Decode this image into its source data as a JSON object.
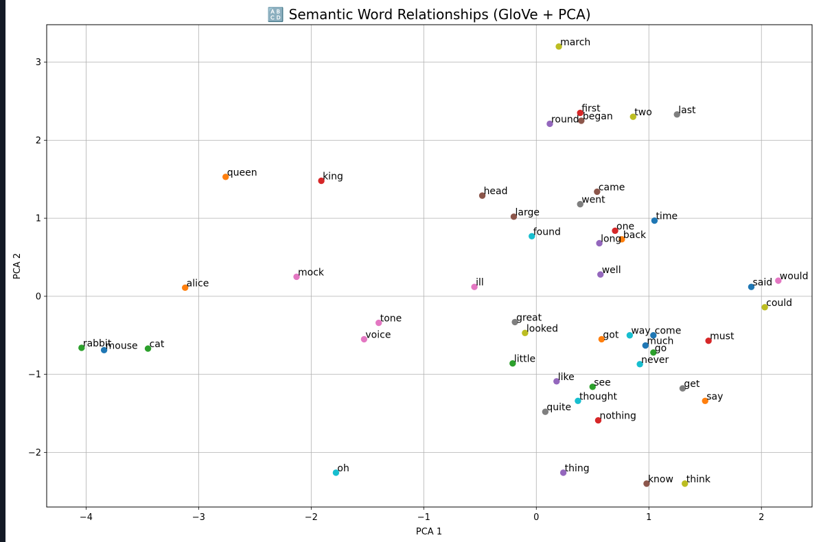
{
  "chart_data": {
    "type": "scatter",
    "title": "🔠 Semantic Word Relationships (GloVe + PCA)",
    "xlabel": "PCA 1",
    "ylabel": "PCA 2",
    "xlim": [
      -4.35,
      2.45
    ],
    "ylim": [
      -2.7,
      3.48
    ],
    "xticks": [
      -4,
      -3,
      -2,
      -1,
      0,
      1,
      2
    ],
    "yticks": [
      -2,
      -1,
      0,
      1,
      2,
      3
    ],
    "grid": true,
    "points": [
      {
        "word": "march",
        "x": 0.2,
        "y": 3.2,
        "color": "#bcbd22"
      },
      {
        "word": "first",
        "x": 0.39,
        "y": 2.35,
        "color": "#d62728"
      },
      {
        "word": "began",
        "x": 0.4,
        "y": 2.25,
        "color": "#8c564b"
      },
      {
        "word": "round",
        "x": 0.12,
        "y": 2.21,
        "color": "#9467bd"
      },
      {
        "word": "two",
        "x": 0.86,
        "y": 2.3,
        "color": "#bcbd22"
      },
      {
        "word": "last",
        "x": 1.25,
        "y": 2.33,
        "color": "#7f7f7f"
      },
      {
        "word": "queen",
        "x": -2.76,
        "y": 1.53,
        "color": "#ff7f0e"
      },
      {
        "word": "king",
        "x": -1.91,
        "y": 1.48,
        "color": "#d62728"
      },
      {
        "word": "head",
        "x": -0.48,
        "y": 1.29,
        "color": "#8c564b"
      },
      {
        "word": "came",
        "x": 0.54,
        "y": 1.34,
        "color": "#8c564b"
      },
      {
        "word": "went",
        "x": 0.39,
        "y": 1.18,
        "color": "#7f7f7f"
      },
      {
        "word": "large",
        "x": -0.2,
        "y": 1.02,
        "color": "#8c564b"
      },
      {
        "word": "time",
        "x": 1.05,
        "y": 0.97,
        "color": "#1f77b4"
      },
      {
        "word": "found",
        "x": -0.04,
        "y": 0.77,
        "color": "#17becf"
      },
      {
        "word": "one",
        "x": 0.7,
        "y": 0.84,
        "color": "#d62728"
      },
      {
        "word": "back",
        "x": 0.76,
        "y": 0.73,
        "color": "#ff7f0e"
      },
      {
        "word": "long",
        "x": 0.56,
        "y": 0.68,
        "color": "#9467bd"
      },
      {
        "word": "well",
        "x": 0.57,
        "y": 0.28,
        "color": "#9467bd"
      },
      {
        "word": "said",
        "x": 1.91,
        "y": 0.12,
        "color": "#1f77b4"
      },
      {
        "word": "would",
        "x": 2.15,
        "y": 0.2,
        "color": "#e377c2"
      },
      {
        "word": "could",
        "x": 2.03,
        "y": -0.14,
        "color": "#bcbd22"
      },
      {
        "word": "alice",
        "x": -3.12,
        "y": 0.11,
        "color": "#ff7f0e"
      },
      {
        "word": "mock",
        "x": -2.13,
        "y": 0.25,
        "color": "#e377c2"
      },
      {
        "word": "ill",
        "x": -0.55,
        "y": 0.12,
        "color": "#e377c2"
      },
      {
        "word": "tone",
        "x": -1.4,
        "y": -0.34,
        "color": "#e377c2"
      },
      {
        "word": "voice",
        "x": -1.53,
        "y": -0.55,
        "color": "#e377c2"
      },
      {
        "word": "great",
        "x": -0.19,
        "y": -0.33,
        "color": "#7f7f7f"
      },
      {
        "word": "looked",
        "x": -0.1,
        "y": -0.47,
        "color": "#bcbd22"
      },
      {
        "word": "got",
        "x": 0.58,
        "y": -0.55,
        "color": "#ff7f0e"
      },
      {
        "word": "way",
        "x": 0.83,
        "y": -0.5,
        "color": "#17becf"
      },
      {
        "word": "come",
        "x": 1.04,
        "y": -0.5,
        "color": "#1f77b4"
      },
      {
        "word": "much",
        "x": 0.97,
        "y": -0.63,
        "color": "#1f77b4"
      },
      {
        "word": "go",
        "x": 1.04,
        "y": -0.72,
        "color": "#2ca02c"
      },
      {
        "word": "must",
        "x": 1.53,
        "y": -0.57,
        "color": "#d62728"
      },
      {
        "word": "rabbit",
        "x": -4.04,
        "y": -0.66,
        "color": "#2ca02c"
      },
      {
        "word": "mouse",
        "x": -3.84,
        "y": -0.69,
        "color": "#1f77b4"
      },
      {
        "word": "cat",
        "x": -3.45,
        "y": -0.67,
        "color": "#2ca02c"
      },
      {
        "word": "little",
        "x": -0.21,
        "y": -0.86,
        "color": "#2ca02c"
      },
      {
        "word": "never",
        "x": 0.92,
        "y": -0.87,
        "color": "#17becf"
      },
      {
        "word": "like",
        "x": 0.18,
        "y": -1.09,
        "color": "#9467bd"
      },
      {
        "word": "see",
        "x": 0.5,
        "y": -1.16,
        "color": "#2ca02c"
      },
      {
        "word": "get",
        "x": 1.3,
        "y": -1.18,
        "color": "#7f7f7f"
      },
      {
        "word": "thought",
        "x": 0.37,
        "y": -1.34,
        "color": "#17becf"
      },
      {
        "word": "say",
        "x": 1.5,
        "y": -1.34,
        "color": "#ff7f0e"
      },
      {
        "word": "quite",
        "x": 0.08,
        "y": -1.48,
        "color": "#7f7f7f"
      },
      {
        "word": "nothing",
        "x": 0.55,
        "y": -1.59,
        "color": "#d62728"
      },
      {
        "word": "oh",
        "x": -1.78,
        "y": -2.26,
        "color": "#17becf"
      },
      {
        "word": "thing",
        "x": 0.24,
        "y": -2.26,
        "color": "#9467bd"
      },
      {
        "word": "know",
        "x": 0.98,
        "y": -2.4,
        "color": "#8c564b"
      },
      {
        "word": "think",
        "x": 1.32,
        "y": -2.4,
        "color": "#bcbd22"
      }
    ]
  }
}
